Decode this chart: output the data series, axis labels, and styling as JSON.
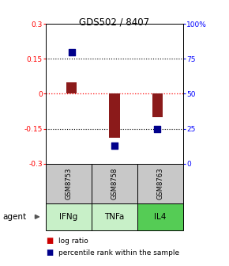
{
  "title": "GDS502 / 8407",
  "samples": [
    "GSM8753",
    "GSM8758",
    "GSM8763"
  ],
  "agents": [
    "IFNg",
    "TNFa",
    "IL4"
  ],
  "log_ratios": [
    0.05,
    -0.19,
    -0.1
  ],
  "percentile_ranks": [
    80,
    13,
    25
  ],
  "ylim_left": [
    -0.3,
    0.3
  ],
  "ylim_right": [
    0,
    100
  ],
  "yticks_left": [
    -0.3,
    -0.15,
    0,
    0.15,
    0.3
  ],
  "ytick_labels_left": [
    "-0.3",
    "-0.15",
    "0",
    "0.15",
    "0.3"
  ],
  "yticks_right": [
    0,
    25,
    50,
    75,
    100
  ],
  "ytick_labels_right": [
    "0",
    "25",
    "50",
    "75",
    "100%"
  ],
  "hlines_dotted": [
    -0.15,
    0.15
  ],
  "hline_red": 0,
  "bar_color": "#8B1A1A",
  "dot_color": "#00008B",
  "agent_colors": [
    "#c8f0c8",
    "#c8f0c8",
    "#55cc55"
  ],
  "sample_bg_color": "#C8C8C8",
  "legend_log_color": "#CC0000",
  "legend_pct_color": "#00008B",
  "bar_width": 0.25
}
